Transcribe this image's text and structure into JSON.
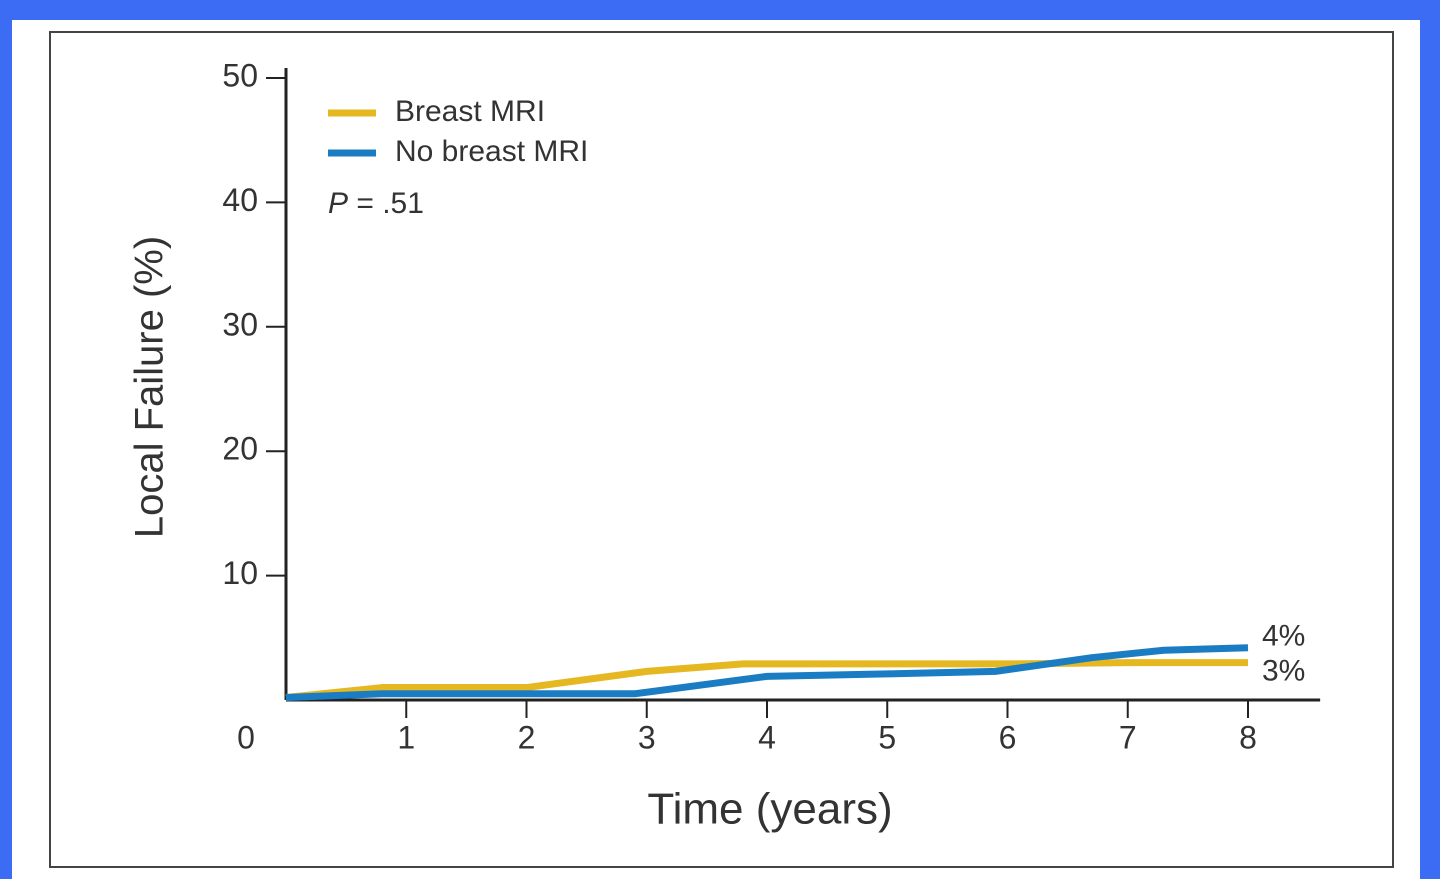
{
  "chart_data": {
    "type": "line",
    "xlabel": "Time (years)",
    "ylabel": "Local Failure (%)",
    "annotation": "P = .51",
    "series": [
      {
        "name": "Breast MRI",
        "color": "#e5b822",
        "x": [
          0,
          0.8,
          2,
          3,
          3.8,
          6,
          7,
          8
        ],
        "values": [
          0.2,
          1,
          1,
          2.3,
          2.9,
          2.9,
          3,
          3
        ],
        "end_label": "3%"
      },
      {
        "name": "No breast MRI",
        "color": "#1a7dc4",
        "x": [
          0,
          0.8,
          2,
          2.9,
          4,
          5,
          5.9,
          6.7,
          7.3,
          8
        ],
        "values": [
          0.2,
          0.5,
          0.5,
          0.5,
          1.9,
          2.1,
          2.3,
          3.4,
          4,
          4.2
        ],
        "end_label": "4%"
      }
    ],
    "xlim": [
      0,
      8.6
    ],
    "xticks": [
      1,
      2,
      3,
      4,
      5,
      6,
      7,
      8
    ],
    "ylim": [
      0,
      50
    ],
    "yticks": [
      0,
      10,
      20,
      30,
      40,
      50
    ],
    "legend": "upper left"
  }
}
